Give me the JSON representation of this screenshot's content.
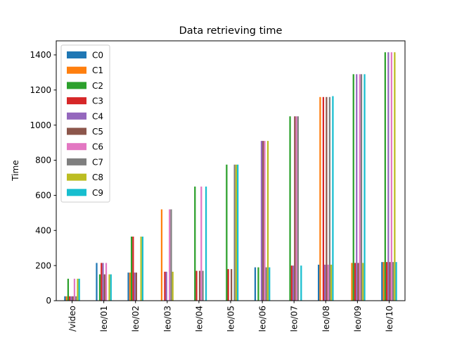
{
  "chart_data": {
    "type": "bar",
    "title": "Data retrieving time",
    "xlabel": "",
    "ylabel": "Time",
    "ylim": [
      0,
      1480
    ],
    "yticks": [
      0,
      200,
      400,
      600,
      800,
      1000,
      1200,
      1400
    ],
    "grid": false,
    "legend_position": "top-left",
    "categories": [
      "/video",
      "leo/01",
      "leo/02",
      "leo/03",
      "leo/04",
      "leo/05",
      "leo/06",
      "leo/07",
      "leo/08",
      "leo/09",
      "leo/10"
    ],
    "series": [
      {
        "name": "C0",
        "color": "#1f77b4",
        "values": [
          25,
          215,
          160,
          0,
          0,
          0,
          190,
          0,
          205,
          0,
          220
        ]
      },
      {
        "name": "C1",
        "color": "#ff7f0e",
        "values": [
          25,
          0,
          160,
          520,
          0,
          0,
          0,
          0,
          1160,
          215,
          220
        ]
      },
      {
        "name": "C2",
        "color": "#2ca02c",
        "values": [
          125,
          150,
          365,
          0,
          650,
          775,
          190,
          1050,
          0,
          1290,
          1415
        ]
      },
      {
        "name": "C3",
        "color": "#d62728",
        "values": [
          25,
          215,
          365,
          165,
          170,
          180,
          0,
          200,
          1160,
          215,
          220
        ]
      },
      {
        "name": "C4",
        "color": "#9467bd",
        "values": [
          25,
          215,
          160,
          165,
          0,
          0,
          910,
          200,
          205,
          1290,
          1415
        ]
      },
      {
        "name": "C5",
        "color": "#8c564b",
        "values": [
          25,
          150,
          160,
          0,
          170,
          180,
          910,
          1050,
          1160,
          215,
          220
        ]
      },
      {
        "name": "C6",
        "color": "#e377c2",
        "values": [
          125,
          215,
          0,
          520,
          650,
          0,
          910,
          1050,
          205,
          1290,
          1415
        ]
      },
      {
        "name": "C7",
        "color": "#7f7f7f",
        "values": [
          25,
          0,
          0,
          520,
          170,
          775,
          190,
          1050,
          1160,
          1290,
          220
        ]
      },
      {
        "name": "C8",
        "color": "#bcbd22",
        "values": [
          125,
          150,
          365,
          165,
          0,
          775,
          910,
          0,
          205,
          215,
          1415
        ]
      },
      {
        "name": "C9",
        "color": "#17becf",
        "values": [
          125,
          150,
          365,
          0,
          650,
          775,
          190,
          200,
          1165,
          1290,
          220
        ]
      }
    ]
  }
}
